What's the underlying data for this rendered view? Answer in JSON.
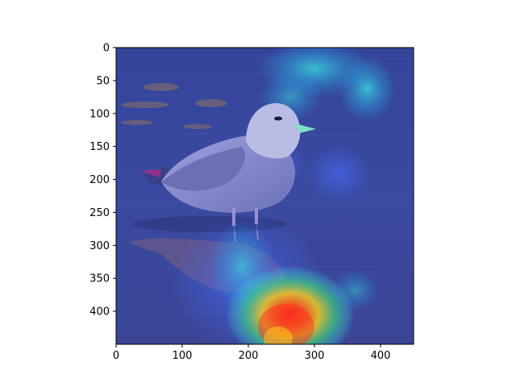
{
  "figure": {
    "background": "#ffffff",
    "x_ticks": [
      "0",
      "100",
      "200",
      "300",
      "400"
    ],
    "y_ticks": [
      "0",
      "50",
      "100",
      "150",
      "200",
      "250",
      "300",
      "350",
      "400"
    ],
    "x_range": [
      0,
      450
    ],
    "y_range": [
      0,
      450
    ]
  },
  "image": {
    "subject": "seagull standing in shallow water with its reflection",
    "overlay": "attention heatmap (jet colormap) blended over the photo",
    "hot_region": "reflection area near the bottom center",
    "colors": {
      "water": "#3a4a9a",
      "water_dark": "#2c3a86",
      "bird_body": "#8a8fcf",
      "bird_head": "#b9bde6",
      "beak": "#7fe0c8",
      "heat_red": "#ff2a1a",
      "heat_yellow": "#ffd21a",
      "heat_green": "#3ef07a",
      "heat_cyan": "#3be7e0"
    }
  }
}
